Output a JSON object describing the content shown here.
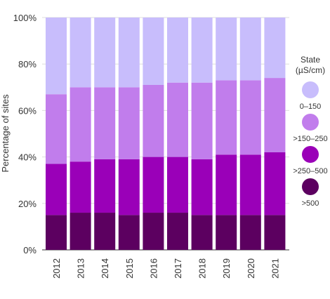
{
  "chart_data": {
    "type": "bar",
    "stacked": true,
    "categories": [
      "2012",
      "2013",
      "2014",
      "2015",
      "2016",
      "2017",
      "2018",
      "2019",
      "2020",
      "2021"
    ],
    "ylabel": "Percentage of sites",
    "xlabel": "",
    "ylim": [
      0,
      100
    ],
    "yticks": [
      "0%",
      "20%",
      "40%",
      "60%",
      "80%",
      "100%"
    ],
    "grid": true,
    "legend": {
      "position": "right",
      "title_line1": "State",
      "title_line2": "(µS/cm)"
    },
    "series": [
      {
        "name": ">500",
        "color": "#5c0060",
        "values": [
          15,
          16,
          16,
          15,
          16,
          16,
          15,
          15,
          15,
          15
        ]
      },
      {
        "name": ">250–500",
        "color": "#9a00b8",
        "values": [
          22,
          22,
          23,
          24,
          24,
          24,
          24,
          26,
          26,
          27
        ]
      },
      {
        "name": ">150–250",
        "color": "#c17dec",
        "values": [
          30,
          32,
          31,
          31,
          31,
          32,
          33,
          32,
          32,
          32
        ]
      },
      {
        "name": "0–150",
        "color": "#c8bdfc",
        "values": [
          33,
          30,
          30,
          30,
          29,
          28,
          28,
          27,
          27,
          26
        ]
      }
    ]
  }
}
